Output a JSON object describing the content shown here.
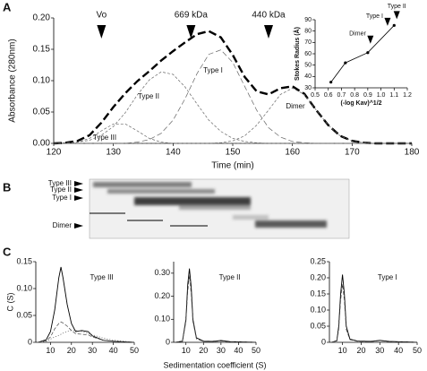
{
  "panels": [
    "A",
    "B",
    "C"
  ],
  "gel": {
    "bands": [
      "Type III",
      "Type II",
      "Type I",
      "Dimer"
    ]
  },
  "chart_data": [
    {
      "type": "line",
      "xlabel": "Time (min)",
      "ylabel": "Absorbance (280nm)",
      "xlim": [
        120,
        180
      ],
      "xticks": [
        120,
        130,
        140,
        150,
        160,
        170,
        180
      ],
      "ylim": [
        0,
        0.2
      ],
      "yticks": [
        {
          "value": 0,
          "label": "0.00"
        },
        0.05,
        {
          "value": 0.1,
          "label": "0.10"
        },
        0.15,
        {
          "value": 0.2,
          "label": "0.20"
        }
      ],
      "markers": [
        {
          "label": "Vo",
          "x": 128
        },
        {
          "label": "669 kDa",
          "x": 143
        },
        {
          "label": "440 kDa",
          "x": 156
        }
      ],
      "peak_labels": [
        "Type III",
        "Type II",
        "Type I",
        "Dimer"
      ],
      "x": [
        120,
        122,
        124,
        126,
        128,
        130,
        132,
        134,
        136,
        138,
        140,
        142,
        144,
        146,
        148,
        150,
        152,
        154,
        156,
        158,
        160,
        162,
        164,
        166,
        168,
        170,
        172,
        174,
        176,
        178,
        180
      ],
      "series": [
        {
          "color": "#000000",
          "dash": "9,4",
          "width": 2.4,
          "values": [
            0.0,
            0.001,
            0.004,
            0.013,
            0.033,
            0.058,
            0.08,
            0.099,
            0.115,
            0.132,
            0.147,
            0.161,
            0.174,
            0.179,
            0.169,
            0.141,
            0.106,
            0.083,
            0.078,
            0.088,
            0.091,
            0.079,
            0.053,
            0.029,
            0.012,
            0.004,
            0.001,
            0.0,
            0.0,
            0.0,
            0.0
          ]
        },
        {
          "color": "#666666",
          "dash": "3,2",
          "width": 0.7,
          "values": [
            0.0,
            0.0,
            0.002,
            0.008,
            0.02,
            0.031,
            0.031,
            0.02,
            0.008,
            0.002,
            0.0,
            0.0,
            0.0,
            0.0,
            0.0,
            0.0,
            0.0,
            0.0,
            0.0,
            0.0,
            0.0,
            0.0,
            0.0,
            0.0,
            0.0,
            0.0,
            0.0,
            0.0,
            0.0,
            0.0,
            0.0
          ]
        },
        {
          "color": "#666666",
          "dash": "3,2",
          "width": 0.7,
          "values": [
            0.0,
            0.001,
            0.002,
            0.005,
            0.013,
            0.027,
            0.049,
            0.077,
            0.101,
            0.114,
            0.11,
            0.09,
            0.063,
            0.037,
            0.019,
            0.008,
            0.003,
            0.001,
            0.0,
            0.0,
            0.0,
            0.0,
            0.0,
            0.0,
            0.0,
            0.0,
            0.0,
            0.0,
            0.0,
            0.0,
            0.0
          ]
        },
        {
          "color": "#666666",
          "dash": "6,3",
          "width": 0.7,
          "values": [
            0.0,
            0.0,
            0.0,
            0.0,
            0.0,
            0.0,
            0.0,
            0.002,
            0.006,
            0.016,
            0.037,
            0.071,
            0.111,
            0.142,
            0.149,
            0.129,
            0.091,
            0.053,
            0.025,
            0.01,
            0.003,
            0.001,
            0.0,
            0.0,
            0.0,
            0.0,
            0.0,
            0.0,
            0.0,
            0.0,
            0.0
          ]
        },
        {
          "color": "#666666",
          "dash": "3,2",
          "width": 0.7,
          "values": [
            0.0,
            0.0,
            0.0,
            0.0,
            0.0,
            0.0,
            0.0,
            0.0,
            0.0,
            0.0,
            0.0,
            0.0,
            0.0,
            0.0,
            0.001,
            0.004,
            0.012,
            0.029,
            0.053,
            0.078,
            0.088,
            0.078,
            0.053,
            0.029,
            0.012,
            0.004,
            0.001,
            0.0,
            0.0,
            0.0,
            0.0
          ]
        }
      ]
    },
    {
      "type": "line",
      "xlabel": "(-log Kav)^1/2",
      "ylabel": "Stokes Radius (Å)",
      "xlim": [
        0.5,
        1.2
      ],
      "xticks": [
        0.5,
        0.6,
        0.7,
        0.8,
        0.9,
        {
          "value": 1,
          "label": "1.0"
        },
        1.1,
        1.2
      ],
      "ylim": [
        30,
        90
      ],
      "yticks": [
        30,
        40,
        50,
        60,
        70,
        80,
        90
      ],
      "markers": [
        {
          "label": "Dimer",
          "x": 0.92
        },
        {
          "label": "Type I",
          "x": 1.05
        },
        {
          "label": "Type II",
          "x": 1.12
        }
      ],
      "x": [
        0.62,
        0.73,
        0.9,
        1.1
      ],
      "series": [
        {
          "color": "#000000",
          "width": 0.8,
          "points": true,
          "values": [
            35,
            52,
            61,
            85
          ]
        }
      ]
    },
    {
      "type": "line",
      "title": "Type III",
      "ylabel": "C (S)",
      "xlim": [
        3,
        50
      ],
      "xticks": [
        10,
        20,
        30,
        40,
        50
      ],
      "ylim": [
        0,
        0.15
      ],
      "yticks": [
        0,
        0.05,
        {
          "value": 0.1,
          "label": "0.10"
        },
        0.15
      ],
      "x": [
        4,
        8,
        10,
        12,
        14,
        15,
        16,
        18,
        20,
        22,
        25,
        28,
        30,
        35,
        40,
        45,
        50
      ],
      "series": [
        {
          "color": "#000000",
          "width": 0.9,
          "values": [
            0.0,
            0.005,
            0.02,
            0.06,
            0.12,
            0.14,
            0.12,
            0.07,
            0.035,
            0.02,
            0.022,
            0.02,
            0.012,
            0.004,
            0.002,
            0.001,
            0.0
          ]
        },
        {
          "color": "#444444",
          "dash": "4,2",
          "width": 0.7,
          "values": [
            0.0,
            0.003,
            0.01,
            0.025,
            0.035,
            0.038,
            0.036,
            0.03,
            0.022,
            0.016,
            0.015,
            0.014,
            0.01,
            0.004,
            0.002,
            0.001,
            0.0
          ]
        },
        {
          "color": "#444444",
          "dash": "1,2",
          "width": 0.7,
          "values": [
            0.0,
            0.002,
            0.006,
            0.01,
            0.013,
            0.015,
            0.017,
            0.02,
            0.022,
            0.022,
            0.02,
            0.017,
            0.014,
            0.008,
            0.004,
            0.002,
            0.0
          ]
        }
      ]
    },
    {
      "type": "line",
      "title": "Type II",
      "xlabel": "Sedimentation coefficient (S)",
      "xlim": [
        3,
        50
      ],
      "xticks": [
        10,
        20,
        30,
        40,
        50
      ],
      "ylim": [
        0,
        0.35
      ],
      "yticks": [
        0,
        {
          "value": 0.1,
          "label": "0.10"
        },
        {
          "value": 0.2,
          "label": "0.20"
        },
        {
          "value": 0.3,
          "label": "0.30"
        }
      ],
      "x": [
        4,
        8,
        10,
        11,
        12,
        13,
        14,
        16,
        20,
        25,
        30,
        35,
        40,
        45,
        50
      ],
      "series": [
        {
          "color": "#000000",
          "width": 0.9,
          "values": [
            0.0,
            0.005,
            0.1,
            0.25,
            0.32,
            0.24,
            0.1,
            0.02,
            0.005,
            0.004,
            0.008,
            0.003,
            0.002,
            0.001,
            0.0
          ]
        },
        {
          "color": "#444444",
          "dash": "4,2",
          "width": 0.7,
          "values": [
            0.0,
            0.004,
            0.09,
            0.22,
            0.29,
            0.21,
            0.09,
            0.015,
            0.004,
            0.003,
            0.006,
            0.002,
            0.001,
            0.0,
            0.0
          ]
        }
      ]
    },
    {
      "type": "line",
      "title": "Type I",
      "xlim": [
        3,
        50
      ],
      "xticks": [
        10,
        20,
        30,
        40,
        50
      ],
      "ylim": [
        0,
        0.25
      ],
      "yticks": [
        0,
        0.05,
        {
          "value": 0.1,
          "label": "0.10"
        },
        0.15,
        {
          "value": 0.2,
          "label": "0.20"
        },
        0.25
      ],
      "x": [
        4,
        7,
        8,
        9,
        10,
        11,
        12,
        14,
        18,
        25,
        30,
        35,
        40,
        45,
        50
      ],
      "series": [
        {
          "color": "#000000",
          "width": 0.9,
          "values": [
            0.0,
            0.005,
            0.05,
            0.15,
            0.21,
            0.15,
            0.05,
            0.01,
            0.004,
            0.003,
            0.006,
            0.003,
            0.002,
            0.001,
            0.0
          ]
        },
        {
          "color": "#444444",
          "dash": "4,2",
          "width": 0.7,
          "values": [
            0.0,
            0.004,
            0.04,
            0.13,
            0.18,
            0.13,
            0.04,
            0.008,
            0.003,
            0.002,
            0.005,
            0.002,
            0.001,
            0.0,
            0.0
          ]
        }
      ]
    }
  ]
}
